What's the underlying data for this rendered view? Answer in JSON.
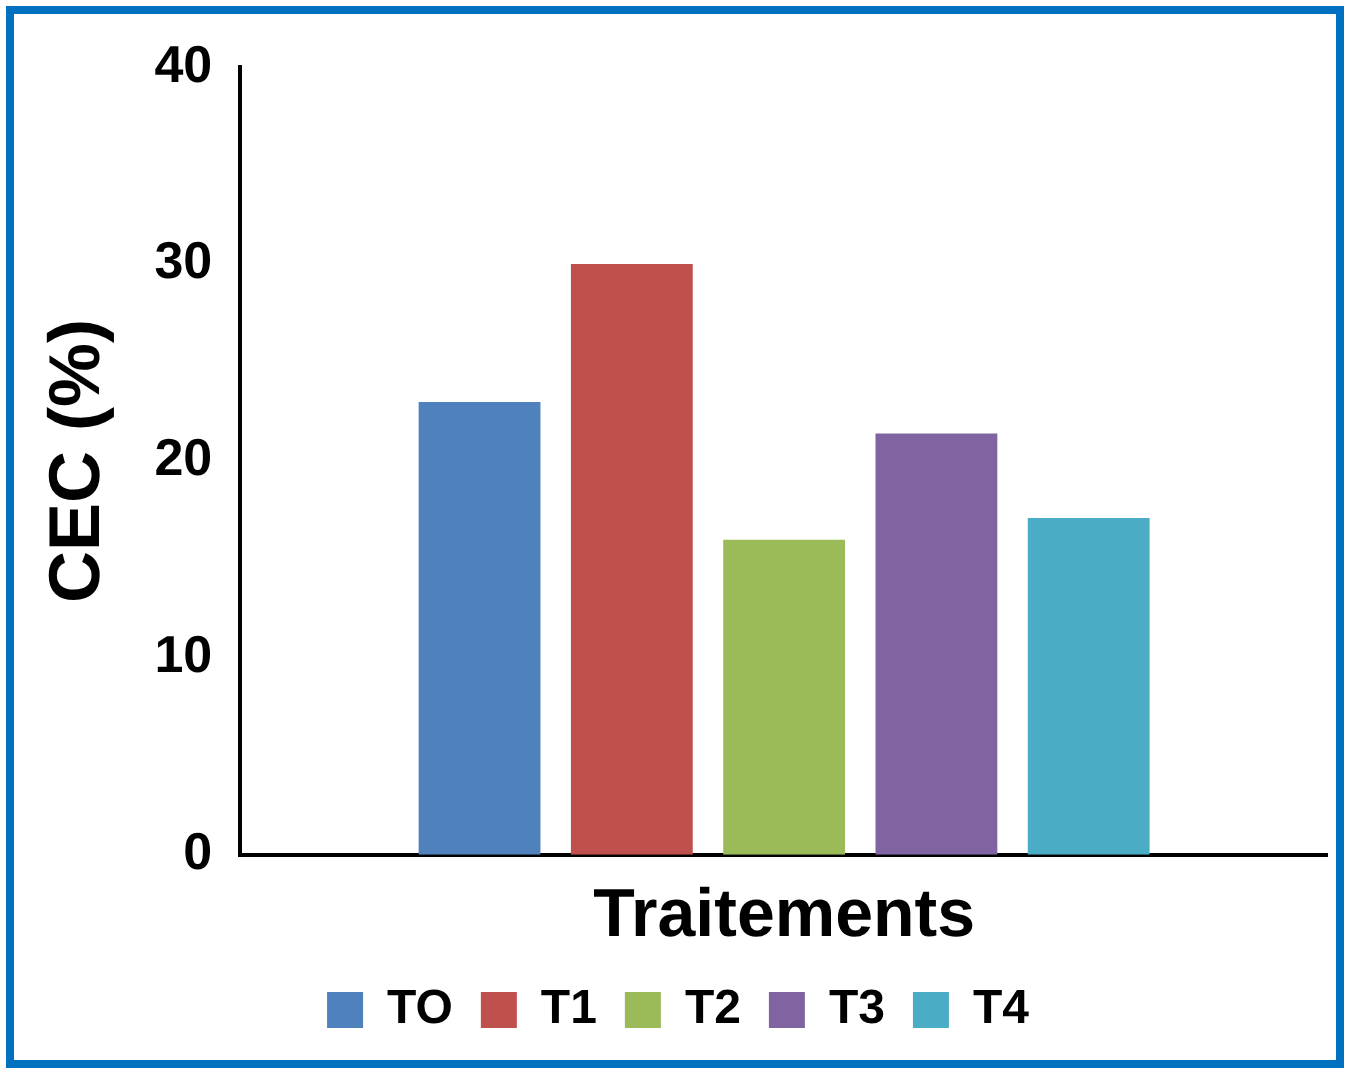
{
  "chart_data": {
    "type": "bar",
    "xlabel": "Traitements",
    "ylabel": "CEC (%)",
    "categories": [
      null
    ],
    "series": [
      {
        "name": "TO",
        "color": "#4f81bd",
        "values": [
          23
        ]
      },
      {
        "name": "T1",
        "color": "#c0504d",
        "values": [
          30
        ]
      },
      {
        "name": "T2",
        "color": "#9bbb59",
        "values": [
          16
        ]
      },
      {
        "name": "T3",
        "color": "#8064a2",
        "values": [
          21.4
        ]
      },
      {
        "name": "T4",
        "color": "#4bacc6",
        "values": [
          17.1
        ]
      }
    ],
    "ylim": [
      0,
      40
    ],
    "yticks": [
      0,
      10,
      20,
      30,
      40
    ],
    "grid": false,
    "legend": "bottom"
  }
}
